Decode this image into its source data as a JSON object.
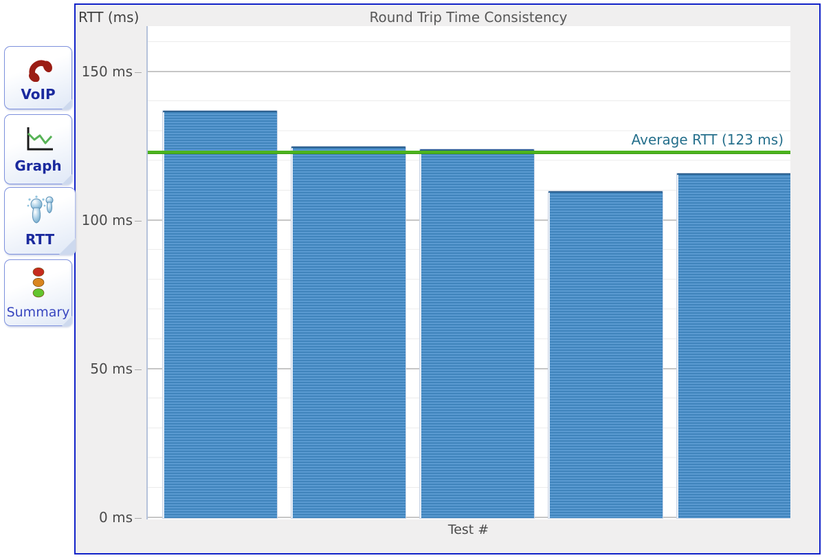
{
  "sidebar": {
    "tabs": [
      {
        "label": "VoIP",
        "icon": "phone-icon",
        "active": false
      },
      {
        "label": "Graph",
        "icon": "line-graph-icon",
        "active": false
      },
      {
        "label": "RTT",
        "icon": "ping-pins-icon",
        "active": true
      },
      {
        "label": "Summary",
        "icon": "traffic-light-icon",
        "active": false
      }
    ]
  },
  "chart_data": {
    "type": "bar",
    "title": "Round Trip Time Consistency",
    "y_axis_label": "RTT (ms)",
    "x_axis_label": "Test #",
    "values": [
      137,
      125,
      124,
      110,
      116
    ],
    "y_ticks": [
      {
        "value": 0,
        "label": "0 ms"
      },
      {
        "value": 50,
        "label": "50 ms"
      },
      {
        "value": 100,
        "label": "100 ms"
      },
      {
        "value": 150,
        "label": "150 ms"
      }
    ],
    "ylim": [
      0,
      165
    ],
    "grid": "horizontal, minor line every 10 ms, major every 50 ms",
    "legend_position": "none",
    "average": {
      "value": 123,
      "label": "Average RTT (123 ms)"
    },
    "colors": {
      "bar": "#4084bc",
      "bar_stripe": "#5a9ad1",
      "average_line": "#4cb41e",
      "average_label_text": "#26708c",
      "panel_border": "#1021c8",
      "panel_background": "#f0efef"
    }
  }
}
